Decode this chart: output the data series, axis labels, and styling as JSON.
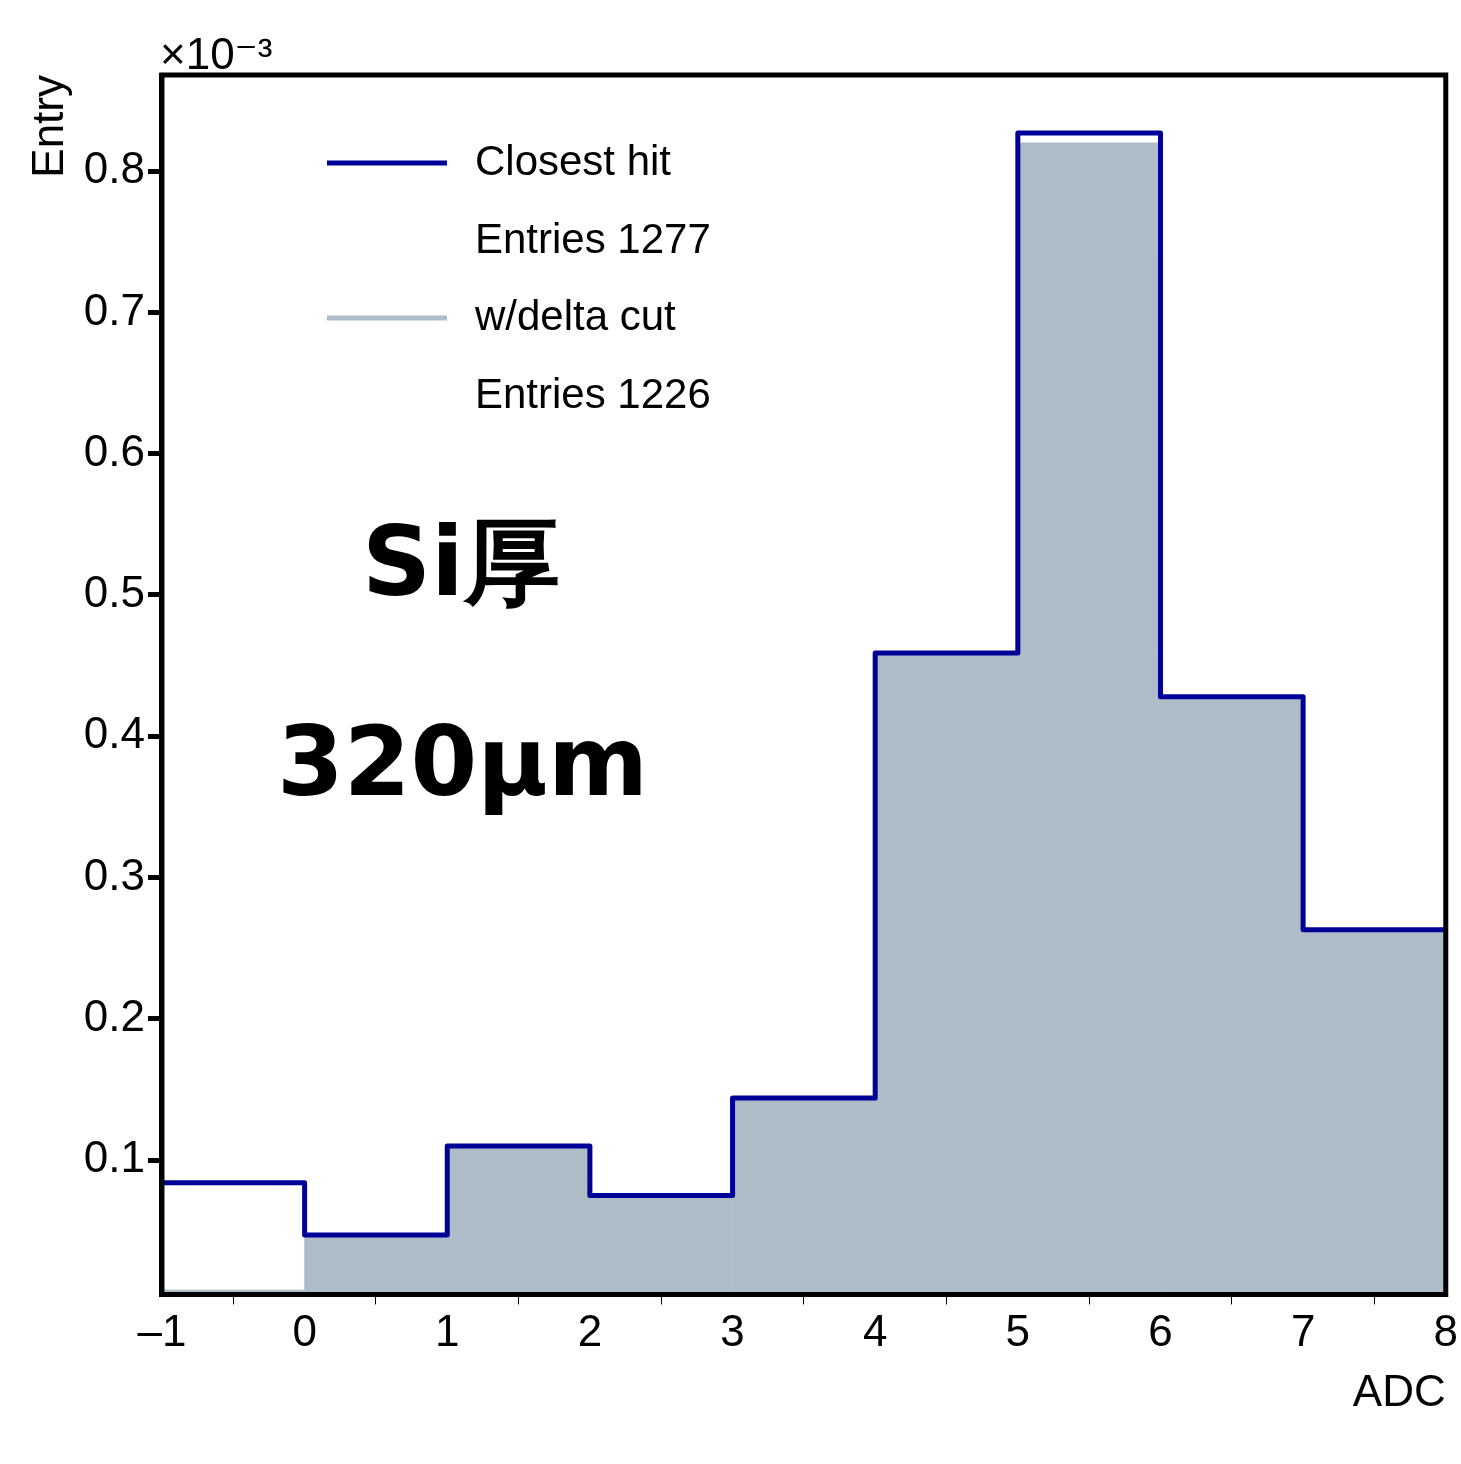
{
  "chart_data": {
    "type": "histogram",
    "xlabel": "ADC",
    "ylabel": "Entry",
    "bins": [
      -1,
      0,
      1,
      2,
      3,
      4,
      5,
      6,
      7,
      8
    ],
    "series": [
      {
        "name": "Closest hit",
        "color": "#000099",
        "values": [
          0.084,
          0.047,
          0.11,
          0.075,
          0.144,
          0.459,
          0.827,
          0.428,
          0.263
        ]
      },
      {
        "name": "w/delta cut",
        "color": "#adbcc7",
        "values": [
          0.008,
          0.047,
          0.11,
          0.075,
          0.144,
          0.459,
          0.82,
          0.428,
          0.263
        ]
      }
    ],
    "xlim": [
      -1,
      8
    ],
    "xticks": [
      {
        "value": -1,
        "label": "–1"
      },
      0,
      1,
      2,
      3,
      4,
      5,
      6,
      7,
      8
    ],
    "ylim": [
      0.005,
      0.868
    ],
    "yticks": [
      0.1,
      0.2,
      0.3,
      0.4,
      0.5,
      0.6,
      0.7,
      0.8
    ],
    "grid": false,
    "legend": "top left",
    "annotations": [
      "×10⁻³",
      "Entries 1277",
      "Entries 1226",
      "Si厚",
      "320μm"
    ]
  }
}
